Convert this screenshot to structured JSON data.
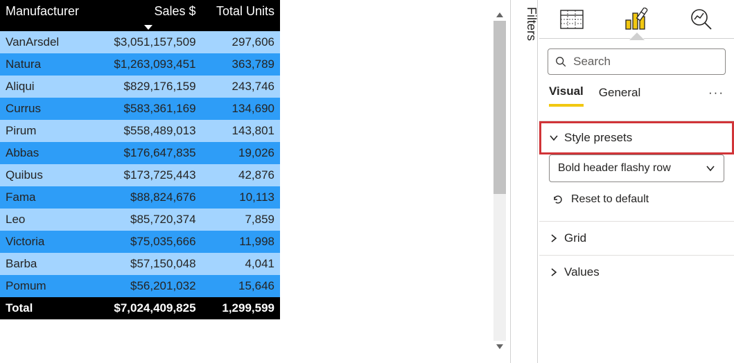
{
  "table": {
    "columns": [
      "Manufacturer",
      "Sales $",
      "Total Units"
    ],
    "sort_column_index": 1,
    "sort_direction": "desc",
    "header_bg": "#000000",
    "header_fg": "#ffffff",
    "row_colors_alt": [
      "#a3d4ff",
      "#2e9df7"
    ],
    "text_color": "#252423",
    "total_bg": "#000000",
    "total_fg": "#ffffff",
    "rows": [
      {
        "manufacturer": "VanArsdel",
        "sales": "$3,051,157,509",
        "units": "297,606"
      },
      {
        "manufacturer": "Natura",
        "sales": "$1,263,093,451",
        "units": "363,789"
      },
      {
        "manufacturer": "Aliqui",
        "sales": "$829,176,159",
        "units": "243,746"
      },
      {
        "manufacturer": "Currus",
        "sales": "$583,361,169",
        "units": "134,690"
      },
      {
        "manufacturer": "Pirum",
        "sales": "$558,489,013",
        "units": "143,801"
      },
      {
        "manufacturer": "Abbas",
        "sales": "$176,647,835",
        "units": "19,026"
      },
      {
        "manufacturer": "Quibus",
        "sales": "$173,725,443",
        "units": "42,876"
      },
      {
        "manufacturer": "Fama",
        "sales": "$88,824,676",
        "units": "10,113"
      },
      {
        "manufacturer": "Leo",
        "sales": "$85,720,374",
        "units": "7,859"
      },
      {
        "manufacturer": "Victoria",
        "sales": "$75,035,666",
        "units": "11,998"
      },
      {
        "manufacturer": "Barba",
        "sales": "$57,150,048",
        "units": "4,041"
      },
      {
        "manufacturer": "Pomum",
        "sales": "$56,201,032",
        "units": "15,646"
      }
    ],
    "total": {
      "label": "Total",
      "sales": "$7,024,409,825",
      "units": "1,299,599"
    }
  },
  "filters": {
    "label": "Filters"
  },
  "panel": {
    "search": {
      "placeholder": "Search"
    },
    "sub_tabs": {
      "visual": "Visual",
      "general": "General",
      "more": "···"
    },
    "sections": {
      "style_presets": {
        "label": "Style presets",
        "selected": "Bold header flashy row",
        "reset": "Reset to default"
      },
      "grid": {
        "label": "Grid"
      },
      "values": {
        "label": "Values"
      }
    },
    "colors": {
      "accent": "#f2c811",
      "highlight_border": "#d13438",
      "panel_border": "#d0d0d0",
      "text": "#252423"
    }
  }
}
